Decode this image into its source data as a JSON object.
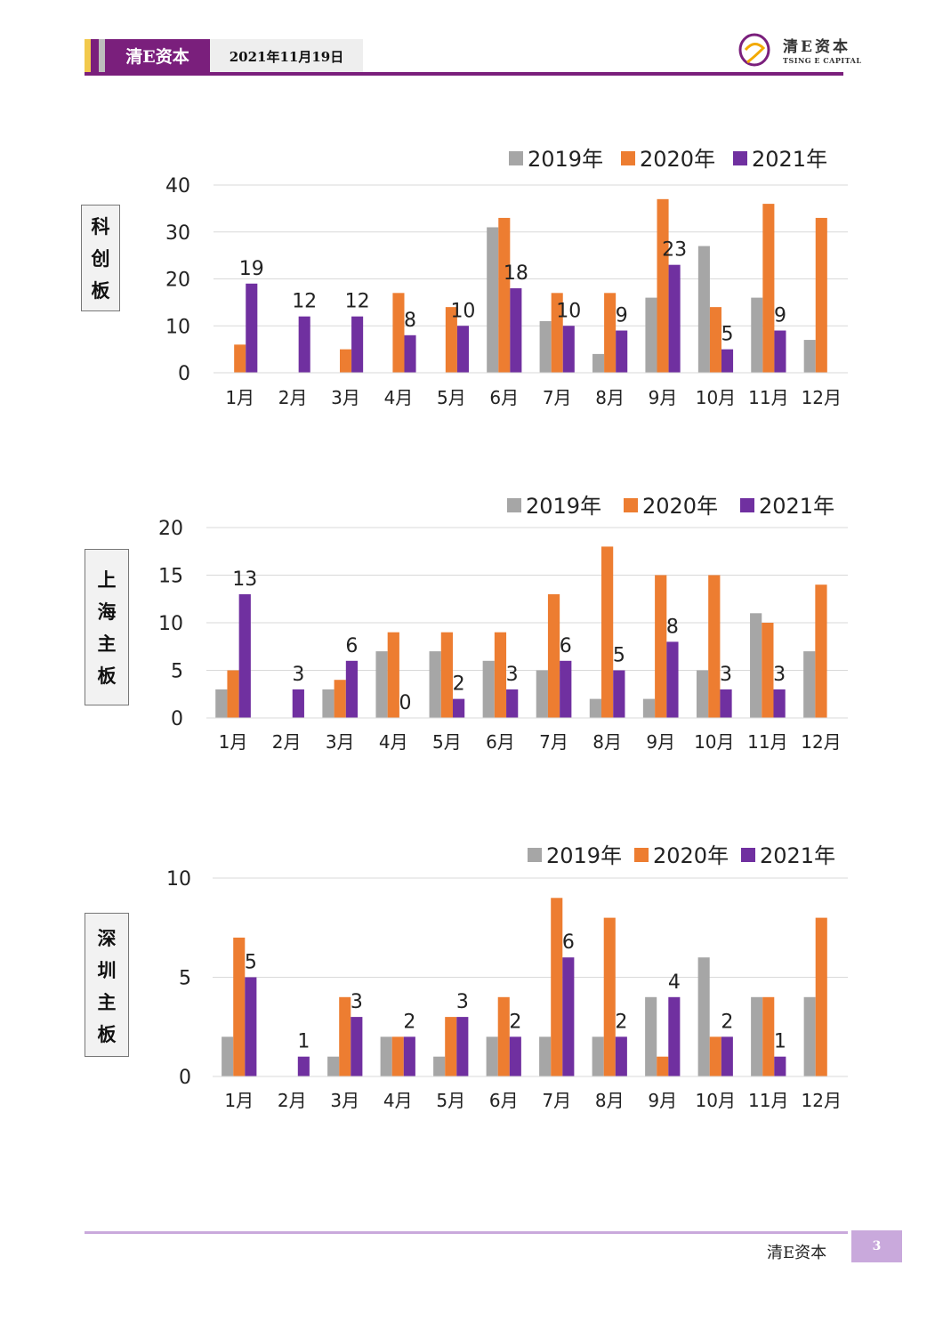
{
  "header": {
    "brand": "清E资本",
    "date": "2021年11月19日",
    "logo_cn": "清E资本",
    "logo_en": "TSING E CAPITAL"
  },
  "footer": {
    "brand": "清E资本",
    "page": "3"
  },
  "colors": {
    "s2019": "#a6a6a6",
    "s2020": "#ed7d31",
    "s2021": "#7030a0",
    "brand": "#7a1f7c"
  },
  "side_labels": [
    [
      "科",
      "创",
      "板"
    ],
    [
      "上",
      "海",
      "主",
      "板"
    ],
    [
      "深",
      "圳",
      "主",
      "板"
    ]
  ],
  "chart_data": [
    {
      "type": "bar",
      "categories": [
        "1月",
        "2月",
        "3月",
        "4月",
        "5月",
        "6月",
        "7月",
        "8月",
        "9月",
        "10月",
        "11月",
        "12月"
      ],
      "series": [
        {
          "name": "2019年",
          "values": [
            0,
            0,
            0,
            0,
            0,
            31,
            11,
            4,
            16,
            27,
            16,
            7
          ]
        },
        {
          "name": "2020年",
          "values": [
            6,
            0,
            5,
            17,
            14,
            33,
            17,
            17,
            37,
            14,
            36,
            33
          ]
        },
        {
          "name": "2021年",
          "values": [
            19,
            12,
            12,
            8,
            10,
            18,
            10,
            9,
            23,
            5,
            9,
            null
          ]
        }
      ],
      "data_labels_series": "2021年",
      "yticks": [
        0,
        10,
        20,
        30,
        40
      ],
      "ylim": [
        0,
        40
      ],
      "legend": "top-right",
      "grid": true
    },
    {
      "type": "bar",
      "categories": [
        "1月",
        "2月",
        "3月",
        "4月",
        "5月",
        "6月",
        "7月",
        "8月",
        "9月",
        "10月",
        "11月",
        "12月"
      ],
      "series": [
        {
          "name": "2019年",
          "values": [
            3,
            0,
            3,
            7,
            7,
            6,
            5,
            2,
            2,
            5,
            11,
            7
          ]
        },
        {
          "name": "2020年",
          "values": [
            5,
            0,
            4,
            9,
            9,
            9,
            13,
            18,
            15,
            15,
            10,
            14
          ]
        },
        {
          "name": "2021年",
          "values": [
            13,
            3,
            6,
            0,
            2,
            3,
            6,
            5,
            8,
            3,
            3,
            null
          ]
        }
      ],
      "data_labels_series": "2021年",
      "yticks": [
        0,
        5,
        10,
        15,
        20
      ],
      "ylim": [
        0,
        20
      ],
      "legend": "top-right",
      "grid": true
    },
    {
      "type": "bar",
      "categories": [
        "1月",
        "2月",
        "3月",
        "4月",
        "5月",
        "6月",
        "7月",
        "8月",
        "9月",
        "10月",
        "11月",
        "12月"
      ],
      "series": [
        {
          "name": "2019年",
          "values": [
            2,
            0,
            1,
            2,
            1,
            2,
            2,
            2,
            4,
            6,
            4,
            4
          ]
        },
        {
          "name": "2020年",
          "values": [
            7,
            0,
            4,
            2,
            3,
            4,
            9,
            8,
            1,
            2,
            4,
            8
          ]
        },
        {
          "name": "2021年",
          "values": [
            5,
            1,
            3,
            2,
            3,
            2,
            6,
            2,
            4,
            2,
            1,
            null
          ]
        }
      ],
      "data_labels_series": "2021年",
      "yticks": [
        0,
        5,
        10
      ],
      "ylim": [
        0,
        10
      ],
      "legend": "top-right",
      "grid": true
    }
  ]
}
